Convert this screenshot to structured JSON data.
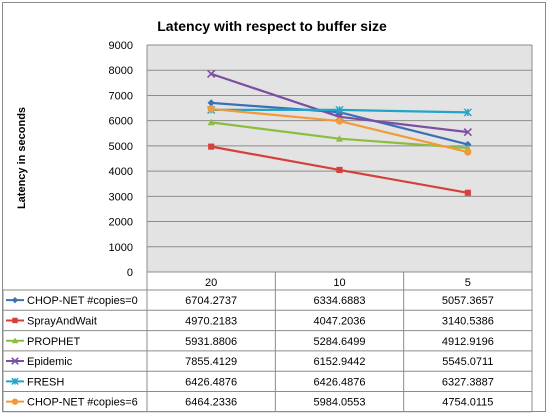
{
  "chart_data": {
    "type": "line",
    "title": "Latency with respect to buffer size",
    "xlabel": "",
    "ylabel": "Latency in seconds",
    "categories": [
      "20",
      "10",
      "5"
    ],
    "ylim": [
      0,
      9000
    ],
    "yticks": [
      "0",
      "1000",
      "2000",
      "3000",
      "4000",
      "5000",
      "6000",
      "7000",
      "8000",
      "9000"
    ],
    "grid": true,
    "legend": "data-table-left",
    "series": [
      {
        "name": "CHOP-NET #copies=0",
        "marker": "diamond",
        "color": "#3d6fb5",
        "values": [
          6704.2737,
          6334.6883,
          5057.3657
        ],
        "labels": [
          "6704.2737",
          "6334.6883",
          "5057.3657"
        ]
      },
      {
        "name": "SprayAndWait",
        "marker": "square",
        "color": "#d6403a",
        "values": [
          4970.2183,
          4047.2036,
          3140.5386
        ],
        "labels": [
          "4970.2183",
          "4047.2036",
          "3140.5386"
        ]
      },
      {
        "name": "PROPHET",
        "marker": "triangle",
        "color": "#8bbd3e",
        "values": [
          5931.8806,
          5284.6499,
          4912.9196
        ],
        "labels": [
          "5931.8806",
          "5284.6499",
          "4912.9196"
        ]
      },
      {
        "name": "Epidemic",
        "marker": "x",
        "color": "#7b4fa2",
        "values": [
          7855.4129,
          6152.9442,
          5545.0711
        ],
        "labels": [
          "7855.4129",
          "6152.9442",
          "5545.0711"
        ]
      },
      {
        "name": "FRESH",
        "marker": "star",
        "color": "#22a3c8",
        "values": [
          6426.4876,
          6426.4876,
          6327.3887
        ],
        "labels": [
          "6426.4876",
          "6426.4876",
          "6327.3887"
        ]
      },
      {
        "name": "CHOP-NET #copies=6",
        "marker": "circle",
        "color": "#f29a3a",
        "values": [
          6464.2336,
          5984.0553,
          4754.0115
        ],
        "labels": [
          "6464.2336",
          "5984.0553",
          "4754.0115"
        ]
      }
    ]
  }
}
